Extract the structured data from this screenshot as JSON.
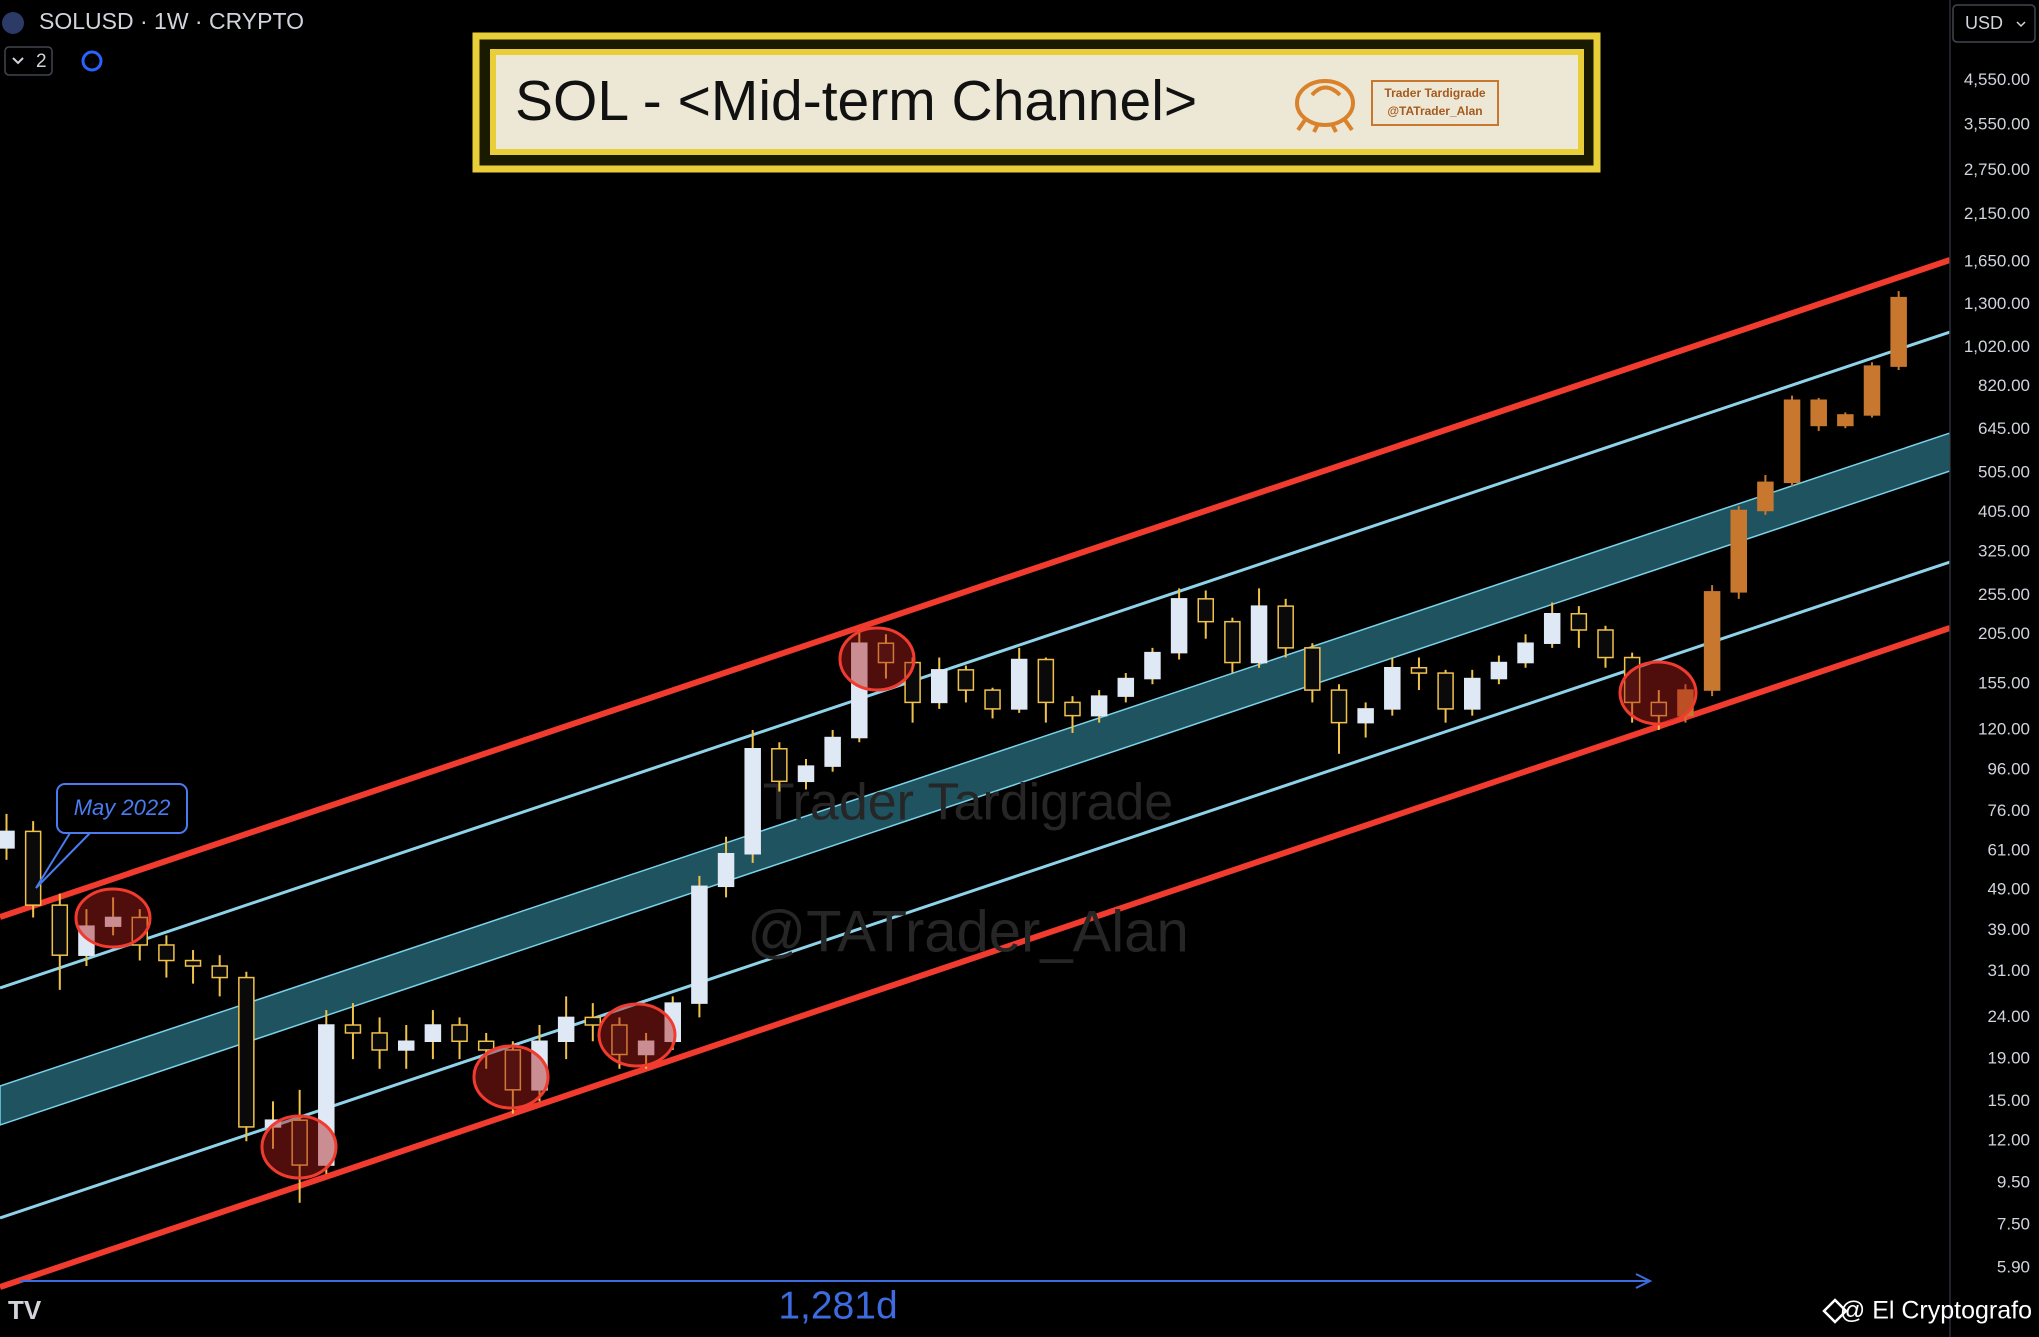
{
  "ui": {
    "symbol": "SOLUSD · 1W · CRYPTO",
    "indicator_count": 2,
    "currency": "USD",
    "credit": "@ El Cryptografo"
  },
  "chart_data": {
    "type": "candlestick",
    "title": "SOL - <Mid-term Channel>",
    "author": [
      "Trader Tardigrade",
      "@TATrader_Alan"
    ],
    "watermark": [
      "Trader Tardigrade",
      "@TATrader_Alan"
    ],
    "annotations": [
      "May 2022",
      "1,281d"
    ],
    "log_scale": true,
    "grid": false,
    "ylim": [
      4.01,
      7145
    ],
    "yticks": [
      {
        "value": 4550,
        "label": "4,550.00"
      },
      {
        "value": 3550,
        "label": "3,550.00"
      },
      {
        "value": 2750,
        "label": "2,750.00"
      },
      {
        "value": 2150,
        "label": "2,150.00"
      },
      {
        "value": 1650,
        "label": "1,650.00"
      },
      {
        "value": 1300,
        "label": "1,300.00"
      },
      {
        "value": 1020,
        "label": "1,020.00"
      },
      {
        "value": 820,
        "label": "820.00"
      },
      {
        "value": 645,
        "label": "645.00"
      },
      {
        "value": 505,
        "label": "505.00"
      },
      {
        "value": 405,
        "label": "405.00"
      },
      {
        "value": 325,
        "label": "325.00"
      },
      {
        "value": 255,
        "label": "255.00"
      },
      {
        "value": 205,
        "label": "205.00"
      },
      {
        "value": 155,
        "label": "155.00"
      },
      {
        "value": 120,
        "label": "120.00"
      },
      {
        "value": 96,
        "label": "96.00"
      },
      {
        "value": 76,
        "label": "76.00"
      },
      {
        "value": 61,
        "label": "61.00"
      },
      {
        "value": 49,
        "label": "49.00"
      },
      {
        "value": 39,
        "label": "39.00"
      },
      {
        "value": 31,
        "label": "31.00"
      },
      {
        "value": 24,
        "label": "24.00"
      },
      {
        "value": 19,
        "label": "19.00"
      },
      {
        "value": 15,
        "label": "15.00"
      },
      {
        "value": 12,
        "label": "12.00"
      },
      {
        "value": 9.5,
        "label": "9.50"
      },
      {
        "value": 7.5,
        "label": "7.50"
      },
      {
        "value": 5.9,
        "label": "5.90"
      }
    ],
    "series": [
      {
        "up_color": "#dfe8f5",
        "down_color": "#0a0a0a",
        "wick_color": "#f0c24a",
        "open": [
          62,
          68,
          45,
          34,
          40,
          42,
          36,
          33,
          32,
          30,
          13,
          13.5,
          10.5,
          23,
          22,
          20,
          21,
          23,
          21,
          20,
          16,
          21,
          24,
          23,
          19.5,
          21,
          26,
          50,
          60,
          108,
          90,
          98,
          115,
          195,
          175,
          140,
          168,
          150,
          135,
          178,
          140,
          130,
          145,
          160,
          185,
          250,
          220,
          175,
          240,
          190,
          150,
          125,
          135,
          170,
          165,
          135,
          160,
          175,
          195,
          230,
          210,
          180,
          140
        ],
        "high": [
          75,
          72,
          48,
          44,
          47,
          44,
          38,
          35,
          34,
          31,
          15,
          16,
          25,
          26,
          24,
          23,
          25,
          24,
          22,
          21,
          23,
          27,
          26,
          24,
          22,
          27,
          53,
          66,
          120,
          112,
          102,
          120,
          210,
          205,
          180,
          180,
          172,
          152,
          190,
          180,
          145,
          150,
          165,
          190,
          265,
          262,
          225,
          265,
          250,
          195,
          155,
          140,
          180,
          180,
          168,
          168,
          182,
          205,
          245,
          240,
          215,
          185,
          150
        ],
        "low": [
          58,
          42,
          28,
          32,
          38,
          33,
          30,
          29,
          27,
          12,
          11.5,
          8.5,
          10,
          19,
          18,
          18,
          19,
          19,
          18,
          14,
          15,
          19,
          21,
          18,
          18,
          20,
          24,
          47,
          57,
          85,
          86,
          95,
          112,
          160,
          125,
          135,
          140,
          128,
          132,
          125,
          118,
          125,
          140,
          155,
          178,
          200,
          165,
          170,
          180,
          140,
          105,
          115,
          130,
          150,
          125,
          130,
          155,
          170,
          190,
          190,
          170,
          125,
          120
        ],
        "close": [
          68,
          45,
          34,
          40,
          42,
          36,
          33,
          32,
          30,
          13,
          13.5,
          10.5,
          23,
          22,
          20,
          21,
          23,
          21,
          20,
          16,
          21,
          24,
          23,
          19.5,
          21,
          26,
          50,
          60,
          108,
          90,
          98,
          115,
          195,
          175,
          140,
          168,
          150,
          135,
          178,
          140,
          130,
          145,
          160,
          185,
          250,
          220,
          175,
          240,
          190,
          150,
          125,
          135,
          170,
          165,
          135,
          160,
          175,
          195,
          230,
          210,
          180,
          140,
          130
        ]
      },
      {
        "up_color": "#c8772f",
        "down_color": "#c8772f",
        "wick_color": "#c8772f",
        "open": [
          130,
          150,
          260,
          410,
          480,
          760,
          660,
          700,
          920
        ],
        "high": [
          155,
          270,
          420,
          500,
          780,
          770,
          710,
          940,
          1400
        ],
        "low": [
          125,
          145,
          250,
          400,
          470,
          640,
          650,
          690,
          900
        ],
        "close": [
          150,
          260,
          410,
          480,
          760,
          660,
          700,
          920,
          1350
        ]
      }
    ]
  }
}
